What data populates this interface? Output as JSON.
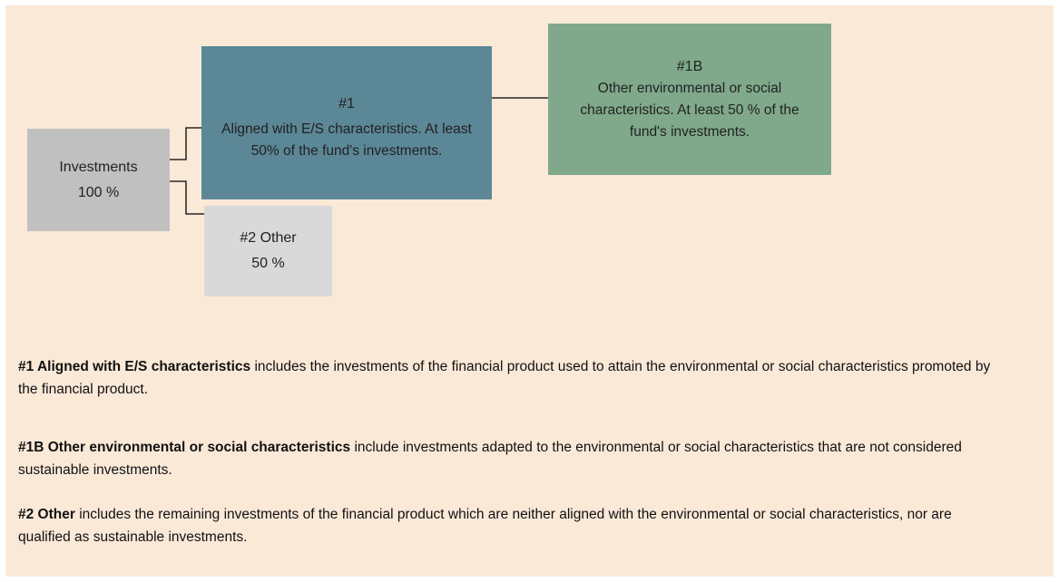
{
  "nodes": [
    {
      "label": "Investments",
      "value": "100 %"
    },
    {
      "label": "#1",
      "text": "Aligned with E/S characteristics. At least 50% of the fund's investments."
    },
    {
      "label": "#1B",
      "text": "Other environmental or social characteristics. At least 50 % of the fund's investments."
    },
    {
      "label": "#2 Other",
      "value": "50 %"
    }
  ],
  "definitions": [
    {
      "term": "#1 Aligned with E/S characteristics",
      "text": "includes the investments of the financial product used to attain the environmental or social characteristics promoted by the financial product."
    },
    {
      "term": "#1B Other environmental or social characteristics",
      "text": "include investments adapted to the environmental or social characteristics that are not considered sustainable investments."
    },
    {
      "term": "#2 Other",
      "text": "includes the remaining investments of the financial product which are neither aligned with the environmental or social characteristics, nor are qualified as sustainable investments."
    }
  ]
}
